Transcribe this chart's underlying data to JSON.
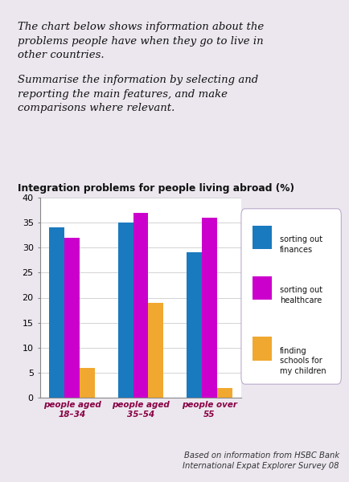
{
  "title": "Integration problems for people living abroad (%)",
  "categories": [
    "people aged\n18–34",
    "people aged\n35–54",
    "people over\n55"
  ],
  "series": {
    "sorting out\nfinances": [
      34,
      35,
      29
    ],
    "sorting out\nhealthcare": [
      32,
      37,
      36
    ],
    "finding\nschools for\nmy children": [
      6,
      19,
      2
    ]
  },
  "colors": {
    "sorting out\nfinances": "#1a7abf",
    "sorting out\nhealthcare": "#cc00cc",
    "finding\nschools for\nmy children": "#f0a830"
  },
  "ylim": [
    0,
    40
  ],
  "yticks": [
    0,
    5,
    10,
    15,
    20,
    25,
    30,
    35,
    40
  ],
  "header_p1": "The chart below shows information about the\nproblems people have when they go to live in\nother countries.",
  "header_p2": "Summarise the information by selecting and\nreporting the main features, and make\ncomparisons where relevant.",
  "footnote": "Based on information from HSBC Bank\nInternational Expat Explorer Survey 08",
  "bg_color": "#ece7ef",
  "chart_bg": "#ffffff",
  "bar_width": 0.22,
  "legend_labels": [
    "sorting out\nfinances",
    "sorting out\nhealthcare",
    "finding\nschools for\nmy children"
  ]
}
